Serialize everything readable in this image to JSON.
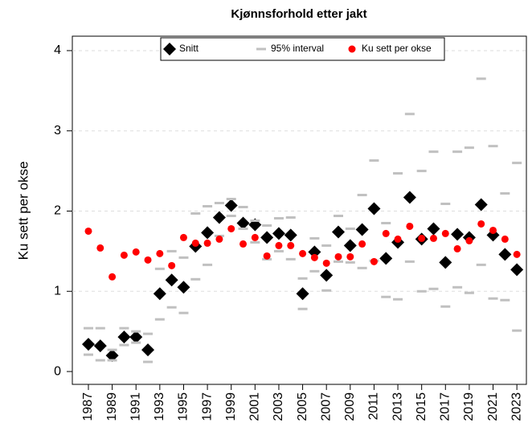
{
  "chart_data": {
    "type": "interval-scatter",
    "title": "Kjønnsforhold etter jakt",
    "y_label": "Ku sett per okse",
    "x": [
      1987,
      1988,
      1989,
      1990,
      1991,
      1992,
      1993,
      1994,
      1995,
      1996,
      1997,
      1998,
      1999,
      2000,
      2001,
      2002,
      2003,
      2004,
      2005,
      2006,
      2007,
      2008,
      2009,
      2010,
      2011,
      2012,
      2013,
      2014,
      2015,
      2016,
      2017,
      2018,
      2019,
      2020,
      2021,
      2022,
      2023
    ],
    "xlim": [
      1985.65,
      2023.8
    ],
    "xticks": [
      1987,
      1989,
      1991,
      1993,
      1995,
      1997,
      1999,
      2001,
      2003,
      2005,
      2007,
      2009,
      2011,
      2013,
      2015,
      2017,
      2019,
      2021,
      2023
    ],
    "ylim": [
      -0.16,
      4.18
    ],
    "yticks": [
      0,
      1,
      2,
      3,
      4
    ],
    "grid": true,
    "legend": "top",
    "series": [
      {
        "name": "Snitt",
        "color": "#000000",
        "marker": "diamond",
        "values": [
          0.34,
          0.32,
          0.2,
          0.43,
          0.43,
          0.27,
          0.97,
          1.14,
          1.05,
          1.56,
          1.73,
          1.92,
          2.07,
          1.85,
          1.83,
          1.67,
          1.72,
          1.7,
          0.97,
          1.49,
          1.2,
          1.74,
          1.57,
          1.77,
          2.03,
          1.41,
          1.61,
          2.17,
          1.65,
          1.78,
          1.36,
          1.71,
          1.67,
          2.08,
          1.7,
          1.46,
          1.27
        ]
      },
      {
        "name": "95% interval",
        "color": "#c0c0c0",
        "marker": "dash",
        "low": [
          0.21,
          0.14,
          0.14,
          0.33,
          0.36,
          0.12,
          0.65,
          0.8,
          0.73,
          1.15,
          1.33,
          1.69,
          1.94,
          1.78,
          1.61,
          1.4,
          1.5,
          1.4,
          0.78,
          1.25,
          1.01,
          1.37,
          1.36,
          1.29,
          1.38,
          0.93,
          0.9,
          1.37,
          1.0,
          1.03,
          0.81,
          1.05,
          0.98,
          1.33,
          0.91,
          0.89,
          0.51
        ],
        "high": [
          0.54,
          0.54,
          0.27,
          0.54,
          0.5,
          0.47,
          1.28,
          1.5,
          1.42,
          1.97,
          2.06,
          2.1,
          2.15,
          2.05,
          1.88,
          1.82,
          1.91,
          1.92,
          1.16,
          1.66,
          1.57,
          1.94,
          1.78,
          2.2,
          2.63,
          1.85,
          2.47,
          3.21,
          2.5,
          2.74,
          2.09,
          2.74,
          2.79,
          3.65,
          2.81,
          2.22,
          2.6
        ]
      },
      {
        "name": "Ku sett per okse",
        "color": "#ff0000",
        "marker": "dot",
        "values": [
          1.75,
          1.54,
          1.18,
          1.45,
          1.49,
          1.39,
          1.47,
          1.32,
          1.67,
          1.6,
          1.6,
          1.65,
          1.78,
          1.59,
          1.67,
          1.44,
          1.57,
          1.57,
          1.47,
          1.42,
          1.35,
          1.43,
          1.43,
          1.59,
          1.37,
          1.72,
          1.65,
          1.81,
          1.66,
          1.66,
          1.72,
          1.53,
          1.63,
          1.84,
          1.76,
          1.65,
          1.46
        ]
      }
    ]
  }
}
